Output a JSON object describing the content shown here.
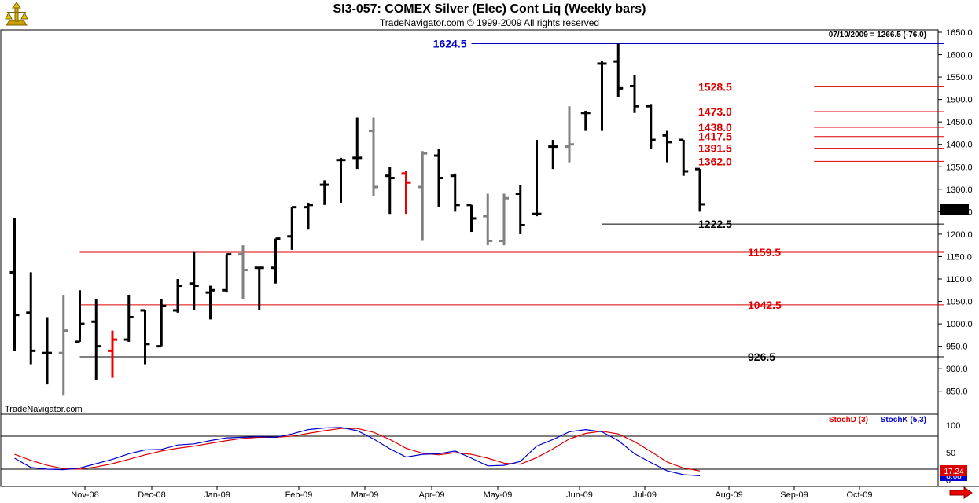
{
  "header": {
    "title": "SI3-057:  COMEX Silver (Elec) Cont Liq  (Weekly bars)",
    "copyright": "TradeNavigator.com © 1999-2009 All rights reserved",
    "watermark": "TradeNavigator.com",
    "info": "07/10/2009 = 1266.5 (-76.0)",
    "last_price": "1266.5"
  },
  "indicator": {
    "stochd_label": "StochD (3)",
    "stochk_label": "StochK (5,3)",
    "stochd_value": "17.24",
    "stochk_value": "8.68",
    "ticks": [
      "100",
      "50",
      "0"
    ],
    "levels": [
      80,
      20
    ]
  },
  "chart_data": {
    "type": "ohlc-bar",
    "ylim": [
      825,
      1650
    ],
    "y_ticks": [
      "1650.0",
      "1600.0",
      "1550.0",
      "1500.0",
      "1450.0",
      "1400.0",
      "1350.0",
      "1300.0",
      "1250.0",
      "1200.0",
      "1150.0",
      "1100.0",
      "1050.0",
      "1000.0",
      "950.0",
      "900.0",
      "850.0"
    ],
    "x_labels": [
      "Nov-08",
      "Dec-08",
      "Jan-09",
      "Feb-09",
      "Mar-09",
      "Apr-09",
      "May-09",
      "Jun-09",
      "Jul-09",
      "Aug-09",
      "Sep-09",
      "Oct-09"
    ],
    "levels": [
      {
        "value": 1624.5,
        "label": "1624.5",
        "color": "#0000cc",
        "from": 28,
        "to": 58,
        "label_at": "left"
      },
      {
        "value": 1528.5,
        "label": "1528.5",
        "color": "#dd0000",
        "from": 49,
        "to": 58,
        "label_at": "right"
      },
      {
        "value": 1473.0,
        "label": "1473.0",
        "color": "#dd0000",
        "from": 49,
        "to": 58,
        "label_at": "right"
      },
      {
        "value": 1438.0,
        "label": "1438.0",
        "color": "#dd0000",
        "from": 49,
        "to": 58,
        "label_at": "right"
      },
      {
        "value": 1417.5,
        "label": "1417.5",
        "color": "#dd0000",
        "from": 49,
        "to": 58,
        "label_at": "right"
      },
      {
        "value": 1391.5,
        "label": "1391.5",
        "color": "#dd0000",
        "from": 49,
        "to": 58,
        "label_at": "right"
      },
      {
        "value": 1362.0,
        "label": "1362.0",
        "color": "#dd0000",
        "from": 49,
        "to": 58,
        "label_at": "right"
      },
      {
        "value": 1222.5,
        "label": "1222.5",
        "color": "#000000",
        "from": 36,
        "to": 58,
        "label_at": "right"
      },
      {
        "value": 1159.5,
        "label": "1159.5",
        "color": "#dd0000",
        "from": 4,
        "to": 58,
        "label_at": "far-right"
      },
      {
        "value": 1042.5,
        "label": "1042.5",
        "color": "#dd0000",
        "from": 4,
        "to": 58,
        "label_at": "far-right"
      },
      {
        "value": 926.5,
        "label": "926.5",
        "color": "#000000",
        "from": 4,
        "to": 58,
        "label_at": "far-right"
      }
    ],
    "bars": [
      {
        "o": 1115,
        "h": 1235,
        "l": 940,
        "c": 1020,
        "color": "#000000"
      },
      {
        "o": 1025,
        "h": 1115,
        "l": 910,
        "c": 940,
        "color": "#000000"
      },
      {
        "o": 935,
        "h": 1015,
        "l": 865,
        "c": 935,
        "color": "#000000"
      },
      {
        "o": 935,
        "h": 1065,
        "l": 840,
        "c": 985,
        "color": "#808080"
      },
      {
        "o": 960,
        "h": 1075,
        "l": 960,
        "c": 1000,
        "color": "#000000"
      },
      {
        "o": 1005,
        "h": 1055,
        "l": 875,
        "c": 950,
        "color": "#000000"
      },
      {
        "o": 940,
        "h": 985,
        "l": 880,
        "c": 965,
        "color": "#ee0000"
      },
      {
        "o": 965,
        "h": 1065,
        "l": 960,
        "c": 1015,
        "color": "#000000"
      },
      {
        "o": 1030,
        "h": 1030,
        "l": 910,
        "c": 955,
        "color": "#000000"
      },
      {
        "o": 950,
        "h": 1055,
        "l": 950,
        "c": 1040,
        "color": "#000000"
      },
      {
        "o": 1030,
        "h": 1100,
        "l": 1025,
        "c": 1085,
        "color": "#000000"
      },
      {
        "o": 1090,
        "h": 1160,
        "l": 1030,
        "c": 1085,
        "color": "#000000"
      },
      {
        "o": 1070,
        "h": 1085,
        "l": 1010,
        "c": 1075,
        "color": "#000000"
      },
      {
        "o": 1075,
        "h": 1155,
        "l": 1070,
        "c": 1155,
        "color": "#000000"
      },
      {
        "o": 1155,
        "h": 1175,
        "l": 1055,
        "c": 1120,
        "color": "#808080"
      },
      {
        "o": 1125,
        "h": 1125,
        "l": 1030,
        "c": 1125,
        "color": "#000000"
      },
      {
        "o": 1125,
        "h": 1190,
        "l": 1090,
        "c": 1190,
        "color": "#000000"
      },
      {
        "o": 1195,
        "h": 1260,
        "l": 1165,
        "c": 1260,
        "color": "#000000"
      },
      {
        "o": 1260,
        "h": 1270,
        "l": 1210,
        "c": 1265,
        "color": "#000000"
      },
      {
        "o": 1310,
        "h": 1320,
        "l": 1265,
        "c": 1310,
        "color": "#000000"
      },
      {
        "o": 1365,
        "h": 1370,
        "l": 1270,
        "c": 1365,
        "color": "#000000"
      },
      {
        "o": 1370,
        "h": 1460,
        "l": 1345,
        "c": 1370,
        "color": "#000000"
      },
      {
        "o": 1430,
        "h": 1460,
        "l": 1285,
        "c": 1305,
        "color": "#808080"
      },
      {
        "o": 1330,
        "h": 1350,
        "l": 1245,
        "c": 1325,
        "color": "#000000"
      },
      {
        "o": 1335,
        "h": 1340,
        "l": 1245,
        "c": 1315,
        "color": "#ee0000"
      },
      {
        "o": 1305,
        "h": 1385,
        "l": 1185,
        "c": 1380,
        "color": "#808080"
      },
      {
        "o": 1375,
        "h": 1390,
        "l": 1260,
        "c": 1325,
        "color": "#000000"
      },
      {
        "o": 1330,
        "h": 1335,
        "l": 1250,
        "c": 1265,
        "color": "#000000"
      },
      {
        "o": 1265,
        "h": 1265,
        "l": 1205,
        "c": 1235,
        "color": "#000000"
      },
      {
        "o": 1240,
        "h": 1290,
        "l": 1175,
        "c": 1185,
        "color": "#808080"
      },
      {
        "o": 1185,
        "h": 1290,
        "l": 1175,
        "c": 1280,
        "color": "#808080"
      },
      {
        "o": 1290,
        "h": 1310,
        "l": 1200,
        "c": 1220,
        "color": "#000000"
      },
      {
        "o": 1245,
        "h": 1410,
        "l": 1240,
        "c": 1245,
        "color": "#000000"
      },
      {
        "o": 1395,
        "h": 1410,
        "l": 1345,
        "c": 1395,
        "color": "#000000"
      },
      {
        "o": 1395,
        "h": 1485,
        "l": 1360,
        "c": 1400,
        "color": "#808080"
      },
      {
        "o": 1470,
        "h": 1475,
        "l": 1430,
        "c": 1470,
        "color": "#000000"
      },
      {
        "o": 1580,
        "h": 1585,
        "l": 1430,
        "c": 1580,
        "color": "#000000"
      },
      {
        "o": 1585,
        "h": 1625,
        "l": 1505,
        "c": 1525,
        "color": "#000000"
      },
      {
        "o": 1530,
        "h": 1555,
        "l": 1470,
        "c": 1485,
        "color": "#000000"
      },
      {
        "o": 1485,
        "h": 1490,
        "l": 1390,
        "c": 1410,
        "color": "#000000"
      },
      {
        "o": 1420,
        "h": 1430,
        "l": 1360,
        "c": 1405,
        "color": "#000000"
      },
      {
        "o": 1410,
        "h": 1410,
        "l": 1330,
        "c": 1340,
        "color": "#000000"
      },
      {
        "o": 1345,
        "h": 1345,
        "l": 1250,
        "c": 1266.5,
        "color": "#000000"
      }
    ],
    "stoch_k": [
      40,
      23,
      20,
      19,
      22,
      30,
      38,
      48,
      55,
      56,
      64,
      66,
      72,
      77,
      78,
      79,
      78,
      84,
      92,
      95,
      96,
      90,
      75,
      57,
      42,
      47,
      48,
      53,
      40,
      26,
      27,
      34,
      62,
      74,
      88,
      92,
      88,
      72,
      48,
      32,
      17,
      10,
      8
    ],
    "stoch_d": [
      47,
      36,
      27,
      21,
      20,
      24,
      30,
      38,
      46,
      53,
      58,
      62,
      67,
      72,
      76,
      78,
      78,
      80,
      85,
      90,
      94,
      94,
      87,
      74,
      58,
      49,
      46,
      50,
      47,
      40,
      31,
      29,
      41,
      57,
      75,
      85,
      89,
      84,
      70,
      52,
      33,
      22,
      17
    ]
  }
}
